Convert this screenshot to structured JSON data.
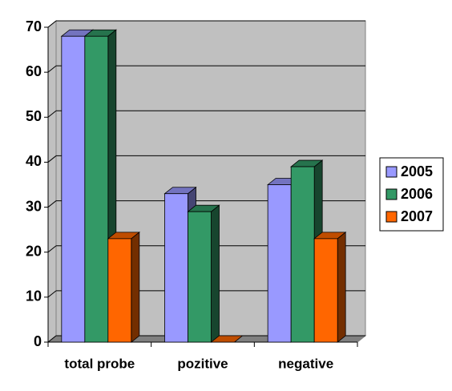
{
  "chart_data": {
    "type": "bar3d",
    "categories": [
      "total probe",
      "pozitive",
      "negative"
    ],
    "series": [
      {
        "name": "2005",
        "color": "#9999ff",
        "values": [
          68,
          33,
          35
        ]
      },
      {
        "name": "2006",
        "color": "#339966",
        "values": [
          68,
          29,
          39
        ]
      },
      {
        "name": "2007",
        "color": "#ff6600",
        "values": [
          23,
          0,
          23
        ]
      }
    ],
    "ylim": [
      0,
      70
    ],
    "yticks": [
      0,
      10,
      20,
      30,
      40,
      50,
      60,
      70
    ],
    "grid": true,
    "legend": "right"
  }
}
